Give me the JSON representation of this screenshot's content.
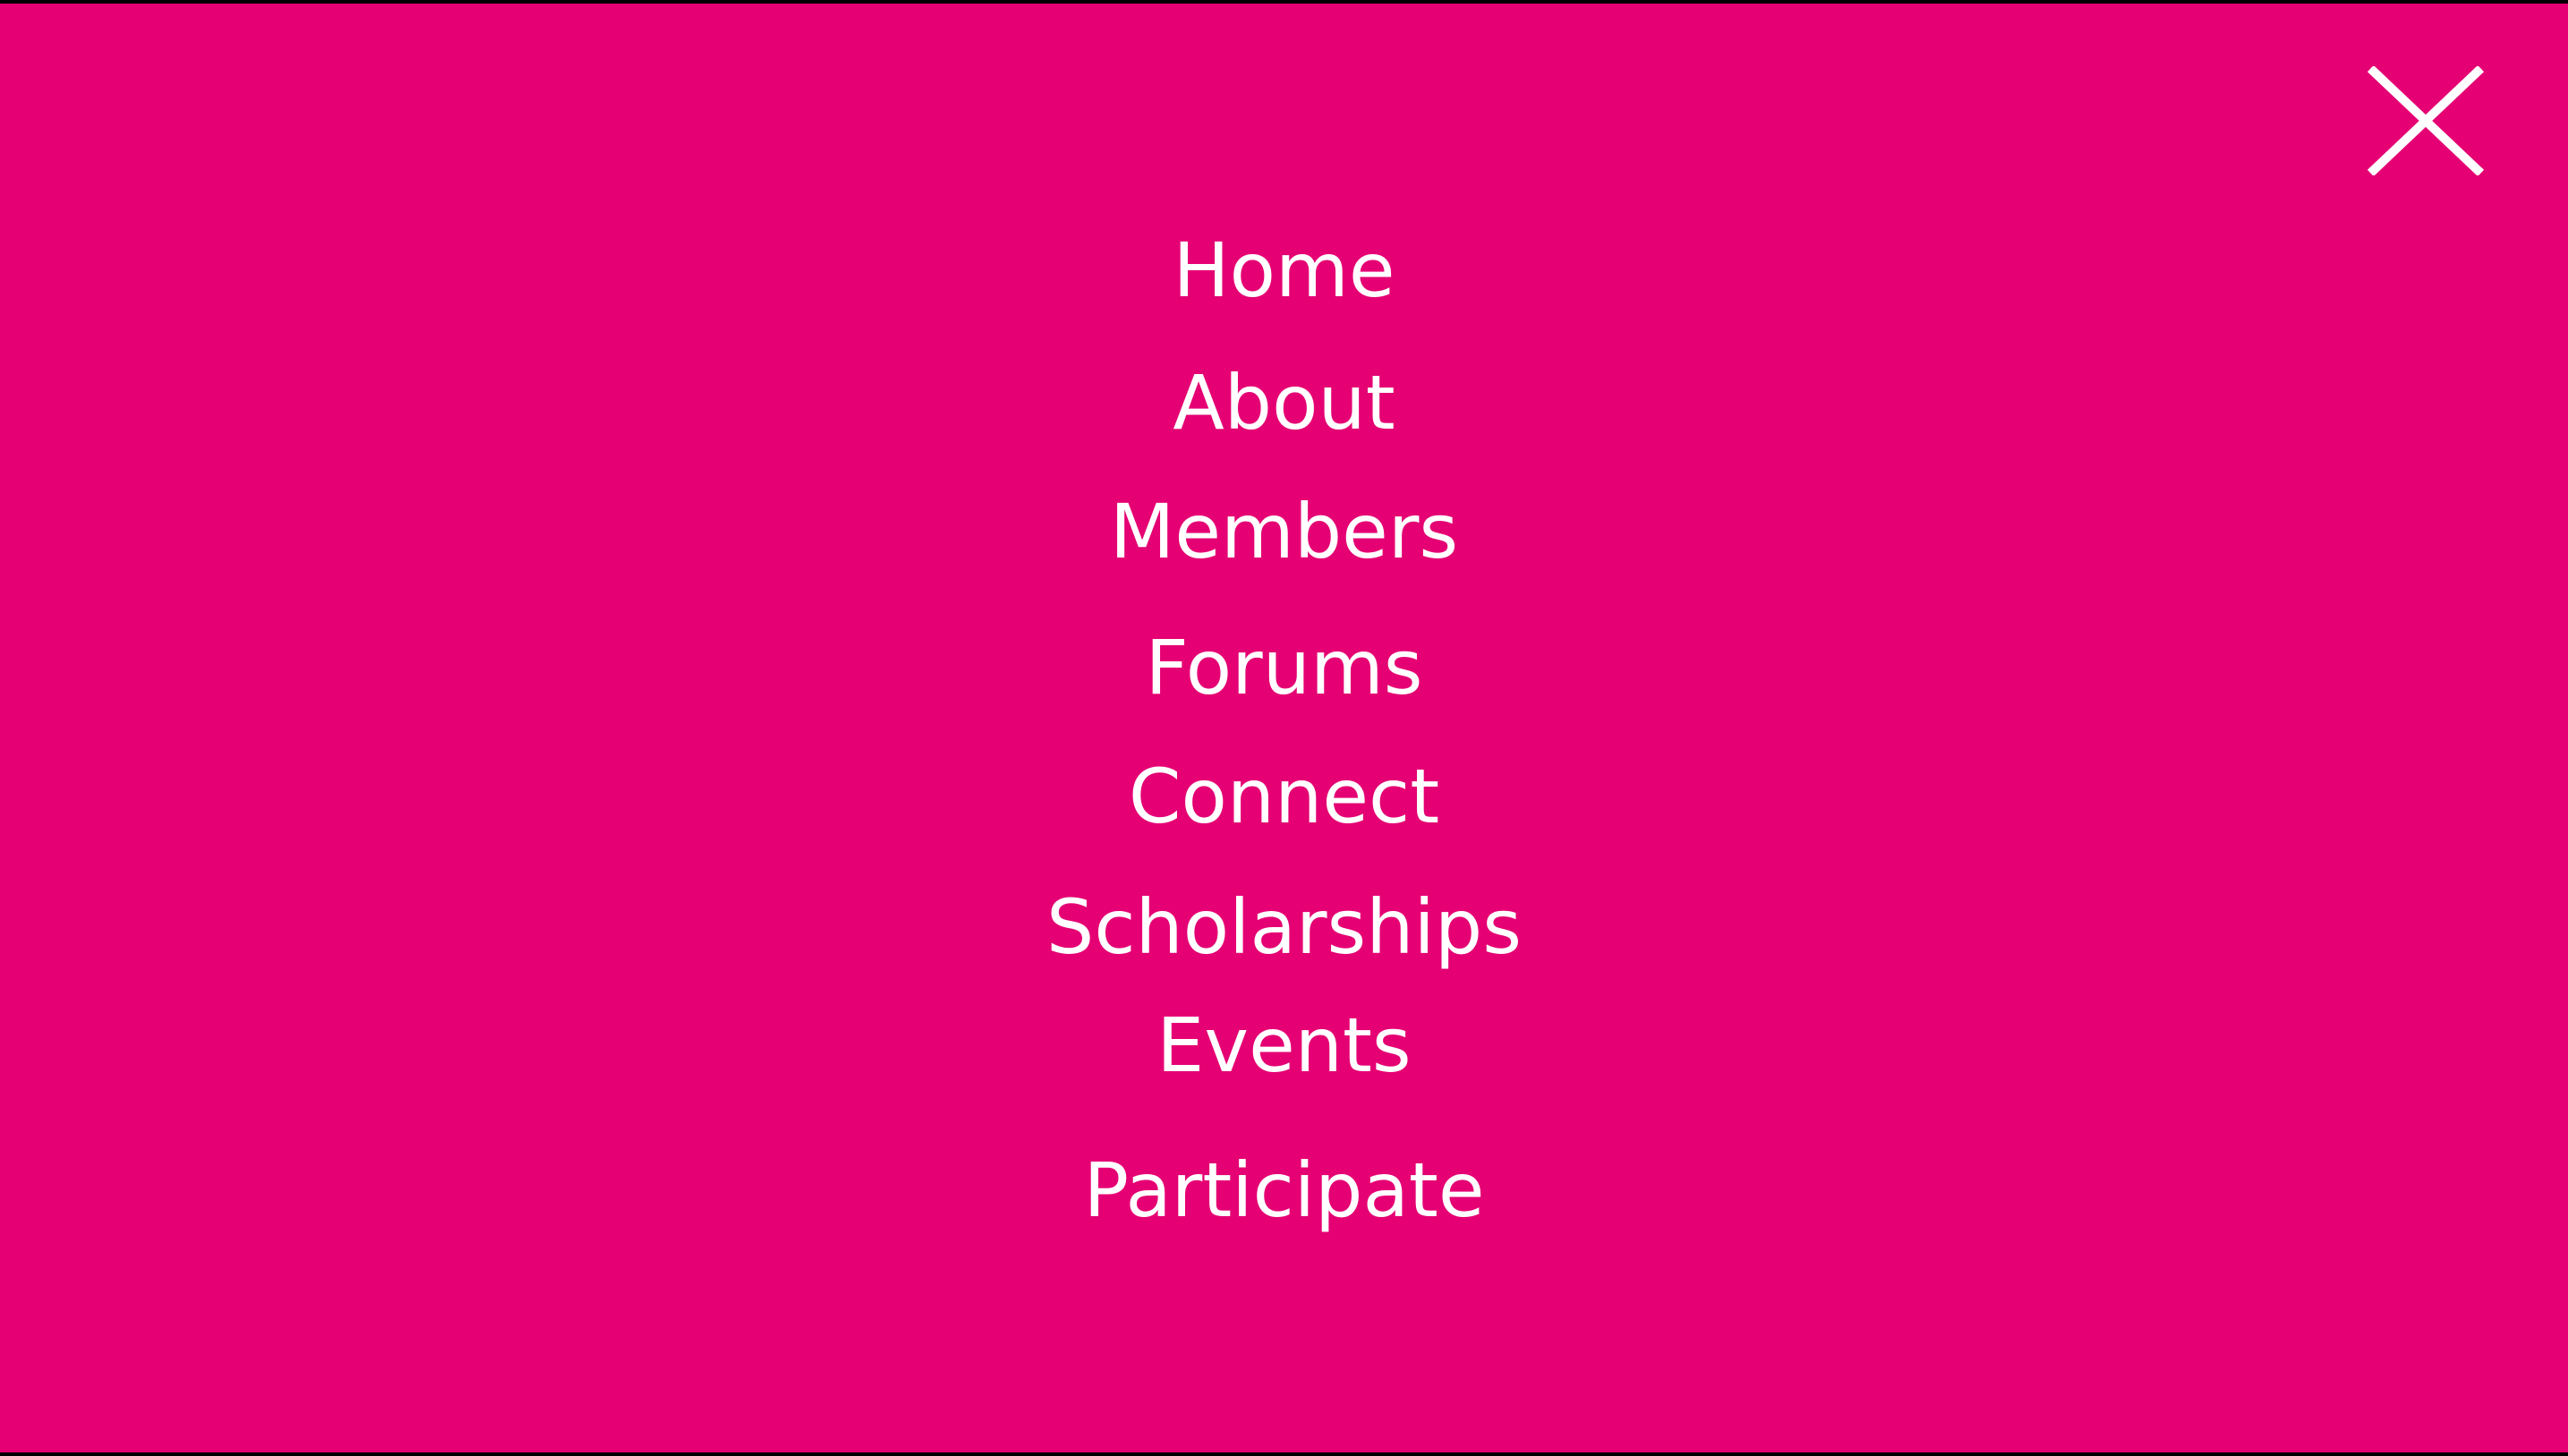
{
  "colors": {
    "background": "#E50073",
    "text": "#FFFFFF",
    "frame": "#000000"
  },
  "close": {
    "icon": "close-icon",
    "aria_label": "Close menu"
  },
  "menu": {
    "items": [
      {
        "id": "home",
        "label": "Home"
      },
      {
        "id": "about",
        "label": "About"
      },
      {
        "id": "members",
        "label": "Members"
      },
      {
        "id": "forums",
        "label": "Forums"
      },
      {
        "id": "connect",
        "label": "Connect"
      },
      {
        "id": "scholarships",
        "label": "Scholarships"
      },
      {
        "id": "events",
        "label": "Events"
      },
      {
        "id": "participate",
        "label": "Participate"
      }
    ]
  }
}
